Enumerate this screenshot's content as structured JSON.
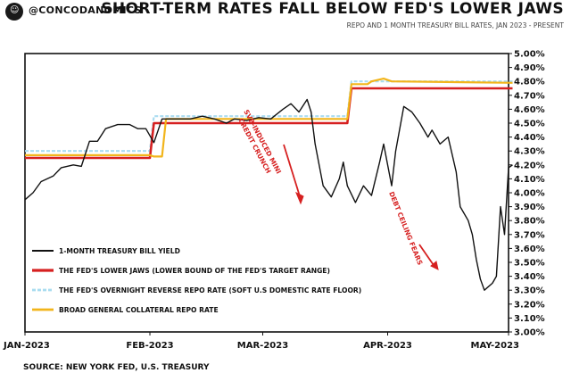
{
  "header": {
    "handle": "@CONCODANOMICS",
    "title": "SHORT-TERM RATES FALL BELOW FED'S LOWER JAWS",
    "subtitle": "REPO AND 1 MONTH TREASURY BILL RATES, JAN 2023 - PRESENT",
    "source": "SOURCE: NEW YORK FED, U.S. TREASURY"
  },
  "chart_data": {
    "type": "line",
    "xlim": [
      "2023-01-01",
      "2023-05-01"
    ],
    "ylim": [
      3.0,
      5.0
    ],
    "x_ticks": [
      {
        "date": "2023-01-01",
        "label": "JAN-2023"
      },
      {
        "date": "2023-02-01",
        "label": "FEB-2023"
      },
      {
        "date": "2023-03-01",
        "label": "MAR-2023"
      },
      {
        "date": "2023-04-01",
        "label": "APR-2023"
      },
      {
        "date": "2023-05-01",
        "label": "MAY-2023"
      }
    ],
    "y_ticks": [
      3.0,
      3.1,
      3.2,
      3.3,
      3.4,
      3.5,
      3.6,
      3.7,
      3.8,
      3.9,
      4.0,
      4.1,
      4.2,
      4.3,
      4.4,
      4.5,
      4.6,
      4.7,
      4.8,
      4.9,
      5.0
    ],
    "y_tick_suffix": "%",
    "y_axis_side": "right",
    "grid": false,
    "legend_position": "bottom-left",
    "series": [
      {
        "name": "1-MONTH TREASURY BILL YIELD",
        "color": "#111111",
        "points": [
          [
            "2023-01-01",
            3.95
          ],
          [
            "2023-01-03",
            4.0
          ],
          [
            "2023-01-05",
            4.08
          ],
          [
            "2023-01-08",
            4.12
          ],
          [
            "2023-01-10",
            4.18
          ],
          [
            "2023-01-13",
            4.2
          ],
          [
            "2023-01-15",
            4.19
          ],
          [
            "2023-01-17",
            4.37
          ],
          [
            "2023-01-19",
            4.37
          ],
          [
            "2023-01-21",
            4.46
          ],
          [
            "2023-01-24",
            4.49
          ],
          [
            "2023-01-27",
            4.49
          ],
          [
            "2023-01-29",
            4.46
          ],
          [
            "2023-01-31",
            4.46
          ],
          [
            "2023-02-02",
            4.36
          ],
          [
            "2023-02-04",
            4.53
          ],
          [
            "2023-02-08",
            4.53
          ],
          [
            "2023-02-11",
            4.53
          ],
          [
            "2023-02-14",
            4.55
          ],
          [
            "2023-02-17",
            4.53
          ],
          [
            "2023-02-20",
            4.5
          ],
          [
            "2023-02-22",
            4.53
          ],
          [
            "2023-02-25",
            4.52
          ],
          [
            "2023-02-28",
            4.54
          ],
          [
            "2023-03-03",
            4.53
          ],
          [
            "2023-03-06",
            4.6
          ],
          [
            "2023-03-08",
            4.64
          ],
          [
            "2023-03-10",
            4.58
          ],
          [
            "2023-03-12",
            4.67
          ],
          [
            "2023-03-13",
            4.58
          ],
          [
            "2023-03-14",
            4.35
          ],
          [
            "2023-03-16",
            4.05
          ],
          [
            "2023-03-18",
            3.97
          ],
          [
            "2023-03-20",
            4.1
          ],
          [
            "2023-03-21",
            4.22
          ],
          [
            "2023-03-22",
            4.05
          ],
          [
            "2023-03-24",
            3.93
          ],
          [
            "2023-03-26",
            4.05
          ],
          [
            "2023-03-28",
            3.98
          ],
          [
            "2023-03-30",
            4.22
          ],
          [
            "2023-03-31",
            4.35
          ],
          [
            "2023-04-02",
            4.05
          ],
          [
            "2023-04-03",
            4.3
          ],
          [
            "2023-04-05",
            4.62
          ],
          [
            "2023-04-07",
            4.58
          ],
          [
            "2023-04-09",
            4.5
          ],
          [
            "2023-04-11",
            4.4
          ],
          [
            "2023-04-12",
            4.45
          ],
          [
            "2023-04-14",
            4.35
          ],
          [
            "2023-04-16",
            4.4
          ],
          [
            "2023-04-18",
            4.15
          ],
          [
            "2023-04-19",
            3.9
          ],
          [
            "2023-04-21",
            3.8
          ],
          [
            "2023-04-22",
            3.7
          ],
          [
            "2023-04-23",
            3.52
          ],
          [
            "2023-04-24",
            3.38
          ],
          [
            "2023-04-25",
            3.3
          ],
          [
            "2023-04-27",
            3.35
          ],
          [
            "2023-04-28",
            3.4
          ],
          [
            "2023-04-29",
            3.9
          ],
          [
            "2023-04-30",
            3.7
          ],
          [
            "2023-05-01",
            4.18
          ],
          [
            "2023-05-02",
            4.2
          ]
        ]
      },
      {
        "name": "THE FED'S LOWER JAWS (LOWER BOUND OF THE FED'S TARGET RANGE)",
        "color": "#d62020",
        "points": [
          [
            "2023-01-01",
            4.25
          ],
          [
            "2023-02-01",
            4.25
          ],
          [
            "2023-02-02",
            4.5
          ],
          [
            "2023-03-22",
            4.5
          ],
          [
            "2023-03-23",
            4.75
          ],
          [
            "2023-05-02",
            4.75
          ]
        ]
      },
      {
        "name": "THE FED'S OVERNIGHT REVERSE REPO RATE (SOFT U.S DOMESTIC RATE FLOOR)",
        "color": "#a9dcf0",
        "points": [
          [
            "2023-01-01",
            4.3
          ],
          [
            "2023-02-01",
            4.3
          ],
          [
            "2023-02-02",
            4.55
          ],
          [
            "2023-03-22",
            4.55
          ],
          [
            "2023-03-23",
            4.8
          ],
          [
            "2023-05-02",
            4.8
          ]
        ]
      },
      {
        "name": "BROAD GENERAL COLLATERAL REPO RATE",
        "color": "#f2b51b",
        "points": [
          [
            "2023-01-01",
            4.27
          ],
          [
            "2023-02-01",
            4.27
          ],
          [
            "2023-02-02",
            4.26
          ],
          [
            "2023-02-04",
            4.26
          ],
          [
            "2023-02-05",
            4.53
          ],
          [
            "2023-03-22",
            4.53
          ],
          [
            "2023-03-23",
            4.78
          ],
          [
            "2023-03-27",
            4.78
          ],
          [
            "2023-03-28",
            4.8
          ],
          [
            "2023-03-31",
            4.82
          ],
          [
            "2023-04-02",
            4.8
          ],
          [
            "2023-05-02",
            4.79
          ]
        ]
      }
    ],
    "annotations": [
      {
        "lines": [
          "SVB-INDUCED MINI",
          "CREDIT CRUNCH"
        ],
        "color": "#d62020"
      },
      {
        "lines": [
          "DEBT CEILING FEARS"
        ],
        "color": "#d62020"
      }
    ]
  }
}
